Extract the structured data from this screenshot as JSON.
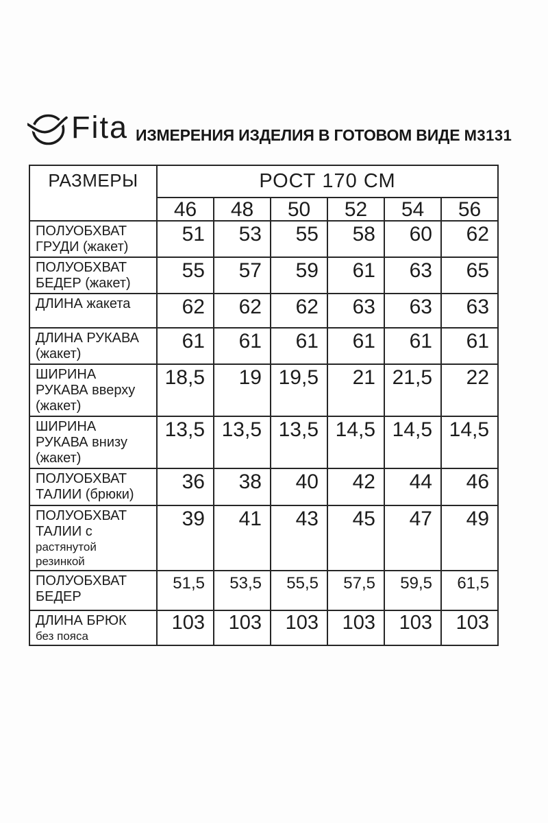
{
  "brand": {
    "name": "Fita",
    "icon": "fita-circle-wave-icon"
  },
  "header": {
    "title": "ИЗМЕРЕНИЯ ИЗДЕЛИЯ В ГОТОВОМ ВИДЕ",
    "model": "М3131"
  },
  "table": {
    "corner_header": "РАЗМЕРЫ",
    "group_header": "РОСТ 170 СМ",
    "sizes": [
      "46",
      "48",
      "50",
      "52",
      "54",
      "56"
    ],
    "rows": [
      {
        "label_lines": [
          "ПОЛУОБХВАТ",
          "ГРУДИ (жакет)"
        ],
        "small_lines": [],
        "values": [
          "51",
          "53",
          "55",
          "58",
          "60",
          "62"
        ]
      },
      {
        "label_lines": [
          "ПОЛУОБХВАТ",
          "БЕДЕР (жакет)"
        ],
        "small_lines": [],
        "values": [
          "55",
          "57",
          "59",
          "61",
          "63",
          "65"
        ]
      },
      {
        "label_lines": [
          "ДЛИНА жакета"
        ],
        "small_lines": [],
        "values": [
          "62",
          "62",
          "62",
          "63",
          "63",
          "63"
        ]
      },
      {
        "label_lines": [
          "ДЛИНА РУКАВА",
          "(жакет)"
        ],
        "small_lines": [],
        "values": [
          "61",
          "61",
          "61",
          "61",
          "61",
          "61"
        ]
      },
      {
        "label_lines": [
          "ШИРИНА",
          "РУКАВА вверху",
          "(жакет)"
        ],
        "small_lines": [],
        "values": [
          "18,5",
          "19",
          "19,5",
          "21",
          "21,5",
          "22"
        ]
      },
      {
        "label_lines": [
          "ШИРИНА",
          "РУКАВА внизу",
          "(жакет)"
        ],
        "small_lines": [],
        "values": [
          "13,5",
          "13,5",
          "13,5",
          "14,5",
          "14,5",
          "14,5"
        ]
      },
      {
        "label_lines": [
          "ПОЛУОБХВАТ",
          "ТАЛИИ (брюки)"
        ],
        "small_lines": [],
        "values": [
          "36",
          "38",
          "40",
          "42",
          "44",
          "46"
        ]
      },
      {
        "label_lines": [
          "ПОЛУОБХВАТ",
          "ТАЛИИ с"
        ],
        "small_lines": [
          "растянутой",
          "резинкой"
        ],
        "values": [
          "39",
          "41",
          "43",
          "45",
          "47",
          "49"
        ]
      },
      {
        "label_lines": [
          "ПОЛУОБХВАТ",
          "БЕДЕР"
        ],
        "small_lines": [],
        "values": [
          "51,5",
          "53,5",
          "55,5",
          "57,5",
          "59,5",
          "61,5"
        ]
      },
      {
        "label_lines": [
          "ДЛИНА БРЮК"
        ],
        "small_lines": [
          "без пояса"
        ],
        "values": [
          "103",
          "103",
          "103",
          "103",
          "103",
          "103"
        ]
      }
    ]
  },
  "colors": {
    "text": "#1a1a1a",
    "border": "#262626",
    "background": "#ffffff"
  }
}
